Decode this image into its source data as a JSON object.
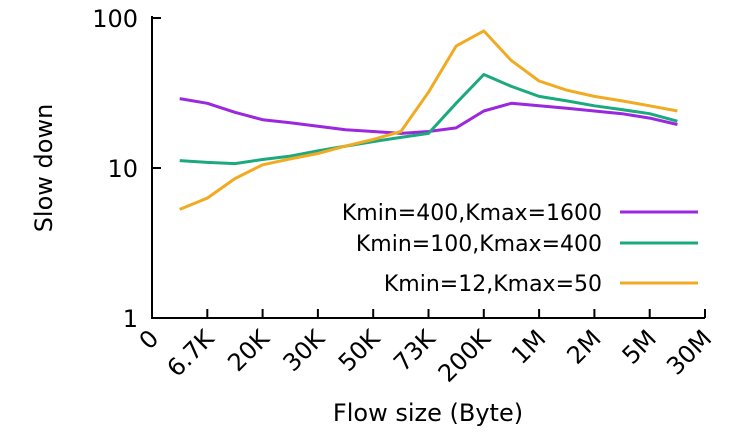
{
  "chart_data": {
    "type": "line",
    "xlabel": "Flow size (Byte)",
    "ylabel": "Slow down",
    "yscale": "log",
    "ylim": [
      1,
      100
    ],
    "y_ticks": [
      "1",
      "10",
      "100"
    ],
    "x_tick_labels": [
      "0",
      "6.7K",
      "20K",
      "30K",
      "50K",
      "73K",
      "200K",
      "1M",
      "2M",
      "5M",
      "30M"
    ],
    "x": [
      0.5,
      1,
      1.5,
      2,
      2.5,
      3,
      3.5,
      4,
      4.5,
      5,
      5.5,
      6,
      6.5,
      7,
      7.5,
      8,
      8.5,
      9,
      9.5
    ],
    "series": [
      {
        "name": "Kmin=400,Kmax=1600",
        "color": "#9b27de",
        "values": [
          29,
          27,
          23.5,
          21,
          20,
          19,
          18,
          17.5,
          17,
          17.5,
          18.5,
          24,
          27,
          26,
          25,
          24,
          23,
          21.5,
          19.5
        ]
      },
      {
        "name": "Kmin=100,Kmax=400",
        "color": "#1ba97e",
        "values": [
          11.2,
          10.9,
          10.7,
          11.4,
          12,
          13,
          14,
          15,
          16,
          17,
          27,
          42,
          35,
          30,
          28,
          26,
          24.5,
          23,
          20.5
        ]
      },
      {
        "name": "Kmin=12,Kmax=50",
        "color": "#f0ab22",
        "values": [
          5.3,
          6.3,
          8.5,
          10.5,
          11.5,
          12.5,
          14,
          15.5,
          17.5,
          32,
          65,
          82,
          52,
          38,
          33,
          30,
          28,
          26,
          24
        ]
      }
    ],
    "legend_position": "bottom-right",
    "grid": false
  }
}
